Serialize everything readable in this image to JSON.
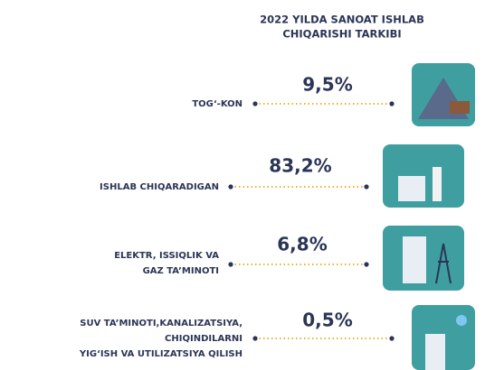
{
  "title": [
    "2022 YILDA SANOAT ISHLAB",
    "CHIQARISHI TARKIBI"
  ],
  "items": [
    {
      "label": [
        "TOG‘-KON"
      ],
      "value": "9,5%"
    },
    {
      "label": [
        "ISHLAB CHIQARADIGAN"
      ],
      "value": "83,2%"
    },
    {
      "label": [
        "ELEKTR, ISSIQLIK VA",
        "GAZ TA’MINOTI"
      ],
      "value": "6,8%"
    },
    {
      "label": [
        "SUV TA’MINOTI,KANALIZATSIYA,",
        "CHIQINDILARNI",
        "YIG‘ISH VA UTILIZATSIYA QILISH"
      ],
      "value": "0,5%"
    }
  ]
}
